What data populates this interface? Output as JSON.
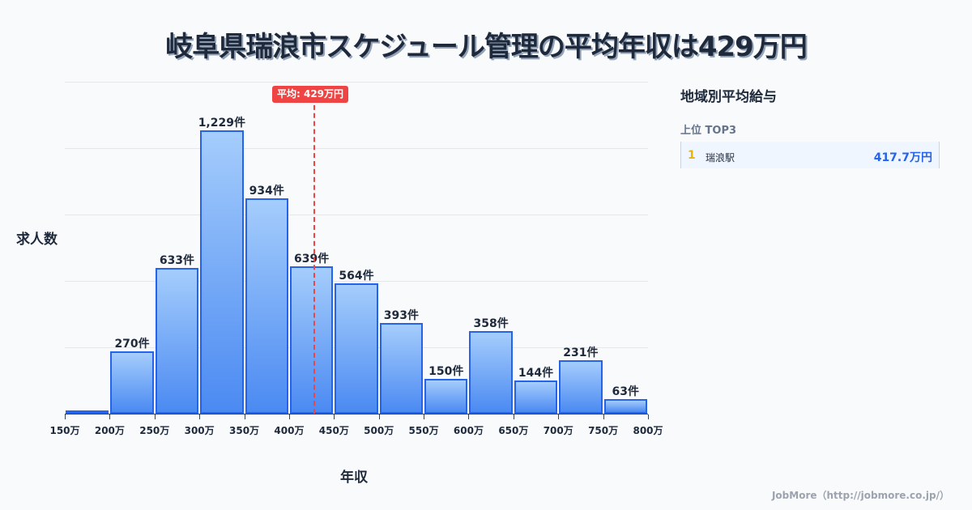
{
  "title": "岐阜県瑞浪市スケジュール管理の平均年収は429万円",
  "axis": {
    "ylabel": "求人数",
    "xlabel": "年収"
  },
  "average": {
    "label": "平均: 429万円",
    "value": 429
  },
  "sidebar": {
    "title": "地域別平均給与",
    "subtitle": "上位 TOP3",
    "ranks": [
      {
        "rank": "1",
        "name": "瑞浪駅",
        "value": "417.7万円"
      }
    ]
  },
  "footer": "JobMore（http://jobmore.co.jp/）",
  "colors": {
    "bar": "#4b8af2",
    "bar_border": "#2563eb",
    "average": "#ef4444",
    "rank_value": "#2563eb",
    "rank_num": "#eab308"
  },
  "chart_data": {
    "type": "bar",
    "title": "岐阜県瑞浪市スケジュール管理の平均年収は429万円",
    "xlabel": "年収",
    "ylabel": "求人数",
    "categories": [
      "150-200万",
      "200-250万",
      "250-300万",
      "300-350万",
      "350-400万",
      "400-450万",
      "450-500万",
      "500-550万",
      "550-600万",
      "600-650万",
      "650-700万",
      "700-750万",
      "750-800万"
    ],
    "x_ticks": [
      "150万",
      "200万",
      "250万",
      "300万",
      "350万",
      "400万",
      "450万",
      "500万",
      "550万",
      "600万",
      "650万",
      "700万",
      "750万",
      "800万"
    ],
    "values": [
      0,
      270,
      633,
      1229,
      934,
      639,
      564,
      393,
      150,
      358,
      144,
      231,
      63
    ],
    "labels": [
      "",
      "270件",
      "633件",
      "1,229件",
      "934件",
      "639件",
      "564件",
      "393件",
      "150件",
      "358件",
      "144件",
      "231件",
      "63件"
    ],
    "average_line": 429,
    "ylim": [
      0,
      1440
    ],
    "grid": true
  }
}
